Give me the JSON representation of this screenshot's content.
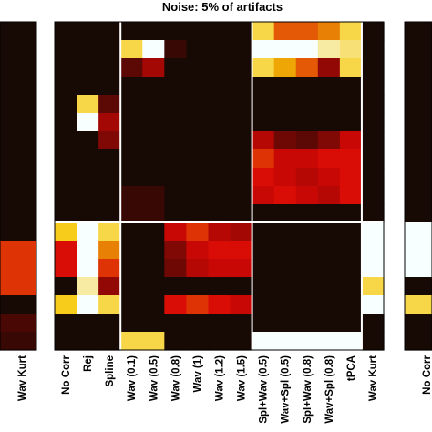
{
  "chart_data": [
    {
      "type": "heatmap",
      "panel": "left-partial",
      "title": "",
      "xlabels": [
        "Wav Kurt"
      ],
      "row_values": [
        0,
        0,
        0,
        0,
        0,
        0,
        0,
        0,
        0,
        0,
        0,
        0,
        0.55,
        0.55,
        0.55,
        0,
        0.1,
        0.05
      ]
    },
    {
      "type": "heatmap",
      "panel": "center",
      "title": "Noise: 5% of artifacts",
      "xlabels": [
        "No Corr",
        "Rej",
        "Spline",
        "Wav (0.1)",
        "Wav (0.5)",
        "Wav (0.8)",
        "Wav (1)",
        "Wav (1.2)",
        "Wav (1.5)",
        "Spl+Wav (0.5)",
        "Wav+Spl (0.5)",
        "Spl+Wav (0.8)",
        "Wav+Spl (0.8)",
        "tPCA",
        "Wav Kurt"
      ],
      "value_scale": "0 = black, 0.5 = red, 0.75 = yellow, 1 = white",
      "grid": [
        [
          0,
          0,
          0,
          0,
          0,
          0,
          0,
          0,
          0,
          0.8,
          0.6,
          0.6,
          0.65,
          0.8,
          0
        ],
        [
          0,
          0,
          0,
          0.8,
          1.0,
          0.05,
          0,
          0,
          0,
          1.0,
          1.0,
          1.0,
          0.9,
          0.85,
          0
        ],
        [
          0,
          0,
          0,
          0.15,
          0.35,
          0,
          0,
          0,
          0,
          0.8,
          0.7,
          0.6,
          0.3,
          0.8,
          0
        ],
        [
          0,
          0,
          0,
          0,
          0,
          0,
          0,
          0,
          0,
          0,
          0,
          0,
          0,
          0,
          0
        ],
        [
          0,
          0.8,
          0.15,
          0,
          0,
          0,
          0,
          0,
          0,
          0,
          0,
          0,
          0,
          0,
          0
        ],
        [
          0,
          1.0,
          0.35,
          0,
          0,
          0,
          0,
          0,
          0.04,
          0,
          0,
          0,
          0,
          0,
          0
        ],
        [
          0,
          0,
          0.25,
          0,
          0,
          0,
          0,
          0,
          0,
          0.4,
          0.2,
          0.15,
          0.25,
          0.45,
          0
        ],
        [
          0,
          0,
          0,
          0,
          0,
          0,
          0,
          0,
          0,
          0.55,
          0.45,
          0.45,
          0.5,
          0.5,
          0
        ],
        [
          0,
          0,
          0,
          0,
          0,
          0,
          0,
          0,
          0,
          0.5,
          0.45,
          0.4,
          0.45,
          0.5,
          0
        ],
        [
          0,
          0,
          0,
          0.05,
          0.05,
          0,
          0,
          0,
          0,
          0.45,
          0.5,
          0.45,
          0.4,
          0.5,
          0
        ],
        [
          0,
          0,
          0,
          0.05,
          0.05,
          0,
          0,
          0,
          0,
          0,
          0,
          0,
          0,
          0,
          0
        ],
        [
          0.75,
          1.0,
          0.8,
          0,
          0,
          0.45,
          0.55,
          0.4,
          0.35,
          0,
          0,
          0,
          0,
          0,
          1.0
        ],
        [
          0.5,
          1.0,
          0.65,
          0,
          0,
          0.25,
          0.45,
          0.5,
          0.5,
          0,
          0,
          0,
          0,
          0,
          1.0
        ],
        [
          0.5,
          1.0,
          0.55,
          0,
          0,
          0.2,
          0.4,
          0.45,
          0.45,
          0,
          0,
          0,
          0,
          0,
          1.0
        ],
        [
          0,
          0.9,
          0.3,
          0,
          0,
          0,
          0,
          0,
          0,
          0,
          0,
          0,
          0,
          0,
          0.8
        ],
        [
          0.75,
          1.0,
          0.8,
          0,
          0,
          0.5,
          0.55,
          0.5,
          0.45,
          0,
          0,
          0,
          0,
          0,
          1.0
        ],
        [
          0,
          0,
          0,
          0,
          0,
          0,
          0,
          0,
          0,
          0,
          0,
          0,
          0,
          0,
          0
        ],
        [
          0,
          0,
          0,
          0.8,
          0.8,
          0,
          0,
          0,
          0,
          1.0,
          1.0,
          1.0,
          1.0,
          1.0,
          0
        ]
      ]
    },
    {
      "type": "heatmap",
      "panel": "right-partial",
      "title": "",
      "xlabels": [
        "No Corr"
      ],
      "row_values": [
        0,
        0,
        0,
        0,
        0,
        0,
        0,
        0,
        0,
        0,
        0,
        1.0,
        1.0,
        1.0,
        0,
        0.8,
        0,
        0
      ]
    }
  ]
}
